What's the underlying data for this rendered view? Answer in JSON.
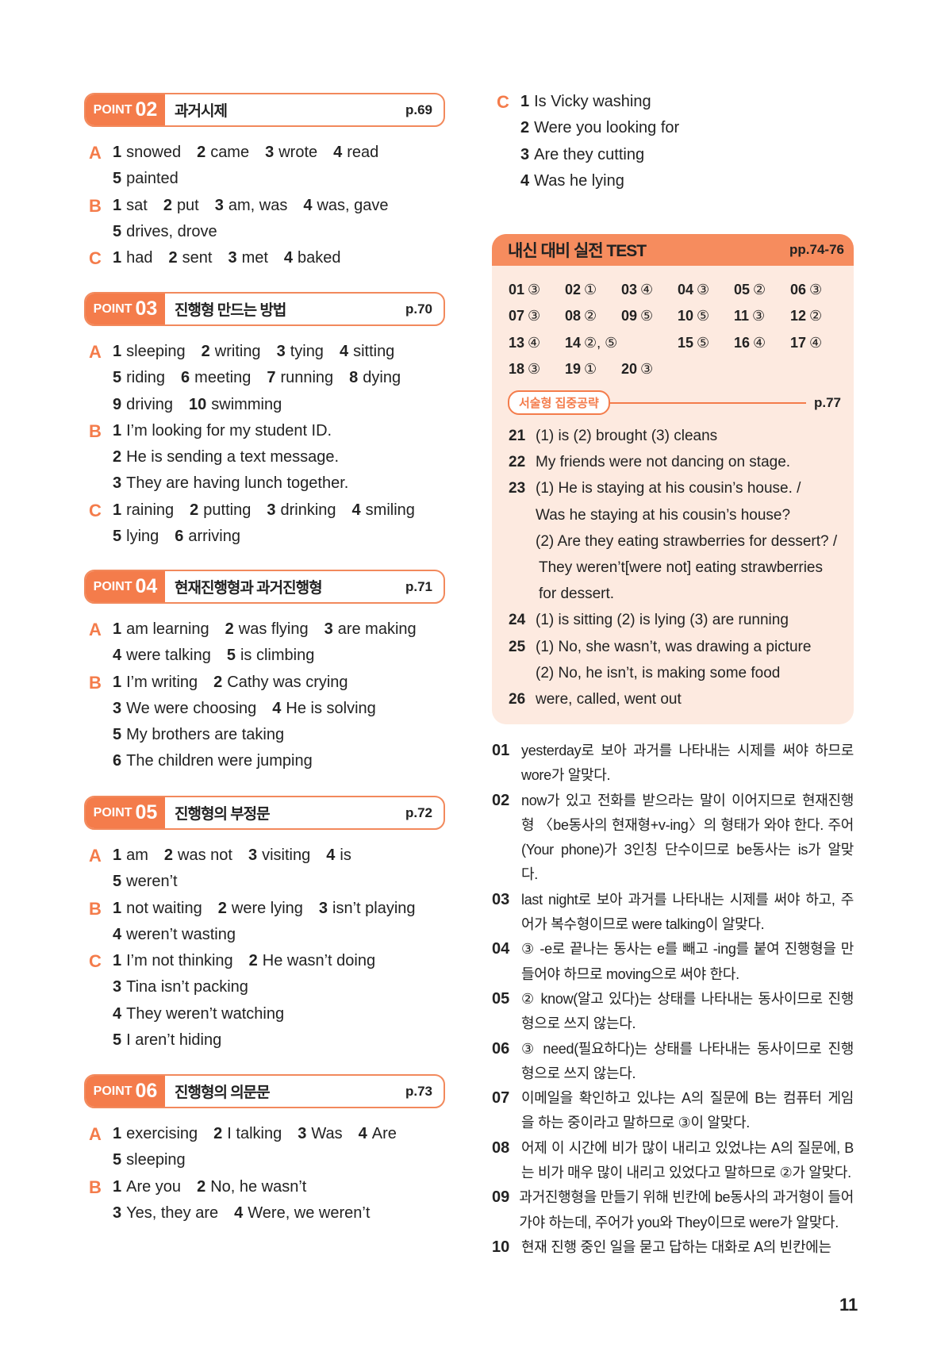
{
  "colors": {
    "accent": "#f47c4b",
    "test_bg": "#fdeae0",
    "test_header": "#f68c5e"
  },
  "left_sections": [
    {
      "point_label": "POINT",
      "point_num": "02",
      "title": "과거시제",
      "page": "p.69",
      "groups": [
        {
          "letter": "A",
          "lines": [
            [
              [
                "1",
                "snowed"
              ],
              [
                "2",
                "came"
              ],
              [
                "3",
                "wrote"
              ],
              [
                "4",
                "read"
              ]
            ],
            [
              [
                "5",
                "painted"
              ]
            ]
          ]
        },
        {
          "letter": "B",
          "lines": [
            [
              [
                "1",
                "sat"
              ],
              [
                "2",
                "put"
              ],
              [
                "3",
                "am, was"
              ],
              [
                "4",
                "was, gave"
              ]
            ],
            [
              [
                "5",
                "drives, drove"
              ]
            ]
          ]
        },
        {
          "letter": "C",
          "lines": [
            [
              [
                "1",
                "had"
              ],
              [
                "2",
                "sent"
              ],
              [
                "3",
                "met"
              ],
              [
                "4",
                "baked"
              ]
            ]
          ]
        }
      ]
    },
    {
      "point_label": "POINT",
      "point_num": "03",
      "title": "진행형 만드는 방법",
      "page": "p.70",
      "groups": [
        {
          "letter": "A",
          "lines": [
            [
              [
                "1",
                "sleeping"
              ],
              [
                "2",
                "writing"
              ],
              [
                "3",
                "tying"
              ],
              [
                "4",
                "sitting"
              ]
            ],
            [
              [
                "5",
                "riding"
              ],
              [
                "6",
                "meeting"
              ],
              [
                "7",
                "running"
              ],
              [
                "8",
                "dying"
              ]
            ],
            [
              [
                "9",
                "driving"
              ],
              [
                "10",
                "swimming"
              ]
            ]
          ]
        },
        {
          "letter": "B",
          "lines": [
            [
              [
                "1",
                "I’m looking for my student ID."
              ]
            ],
            [
              [
                "2",
                "He is sending a text message."
              ]
            ],
            [
              [
                "3",
                "They are having lunch together."
              ]
            ]
          ]
        },
        {
          "letter": "C",
          "lines": [
            [
              [
                "1",
                "raining"
              ],
              [
                "2",
                "putting"
              ],
              [
                "3",
                "drinking"
              ],
              [
                "4",
                "smiling"
              ]
            ],
            [
              [
                "5",
                "lying"
              ],
              [
                "6",
                "arriving"
              ]
            ]
          ]
        }
      ]
    },
    {
      "point_label": "POINT",
      "point_num": "04",
      "title": "현재진행형과 과거진행형",
      "page": "p.71",
      "groups": [
        {
          "letter": "A",
          "lines": [
            [
              [
                "1",
                "am learning"
              ],
              [
                "2",
                "was flying"
              ],
              [
                "3",
                "are making"
              ]
            ],
            [
              [
                "4",
                "were talking"
              ],
              [
                "5",
                "is climbing"
              ]
            ]
          ]
        },
        {
          "letter": "B",
          "lines": [
            [
              [
                "1",
                "I’m writing"
              ],
              [
                "2",
                "Cathy was crying"
              ]
            ],
            [
              [
                "3",
                "We were choosing"
              ],
              [
                "4",
                "He is solving"
              ]
            ],
            [
              [
                "5",
                "My brothers are taking"
              ]
            ],
            [
              [
                "6",
                "The children were jumping"
              ]
            ]
          ]
        }
      ]
    },
    {
      "point_label": "POINT",
      "point_num": "05",
      "title": "진행형의 부정문",
      "page": "p.72",
      "groups": [
        {
          "letter": "A",
          "lines": [
            [
              [
                "1",
                "am"
              ],
              [
                "2",
                "was not"
              ],
              [
                "3",
                "visiting"
              ],
              [
                "4",
                "is"
              ]
            ],
            [
              [
                "5",
                "weren’t"
              ]
            ]
          ]
        },
        {
          "letter": "B",
          "lines": [
            [
              [
                "1",
                "not waiting"
              ],
              [
                "2",
                "were lying"
              ],
              [
                "3",
                "isn’t playing"
              ]
            ],
            [
              [
                "4",
                "weren’t wasting"
              ]
            ]
          ]
        },
        {
          "letter": "C",
          "lines": [
            [
              [
                "1",
                "I’m not thinking"
              ],
              [
                "2",
                "He wasn’t doing"
              ]
            ],
            [
              [
                "3",
                "Tina isn’t packing"
              ]
            ],
            [
              [
                "4",
                "They weren’t watching"
              ]
            ],
            [
              [
                "5",
                "I aren’t hiding"
              ]
            ]
          ]
        }
      ]
    },
    {
      "point_label": "POINT",
      "point_num": "06",
      "title": "진행형의 의문문",
      "page": "p.73",
      "groups": [
        {
          "letter": "A",
          "lines": [
            [
              [
                "1",
                "exercising"
              ],
              [
                "2",
                "I talking"
              ],
              [
                "3",
                "Was"
              ],
              [
                "4",
                "Are"
              ]
            ],
            [
              [
                "5",
                "sleeping"
              ]
            ]
          ]
        },
        {
          "letter": "B",
          "lines": [
            [
              [
                "1",
                "Are you"
              ],
              [
                "2",
                "No, he wasn’t"
              ]
            ],
            [
              [
                "3",
                "Yes, they are"
              ],
              [
                "4",
                "Were, we weren’t"
              ]
            ]
          ]
        }
      ]
    }
  ],
  "right_c": {
    "letter": "C",
    "lines": [
      [
        [
          "1",
          "Is Vicky washing"
        ]
      ],
      [
        [
          "2",
          "Were you looking for"
        ]
      ],
      [
        [
          "3",
          "Are they cutting"
        ]
      ],
      [
        [
          "4",
          "Was he lying"
        ]
      ]
    ]
  },
  "test": {
    "title": "내신 대비 실전 TEST",
    "page": "pp.74-76",
    "answers": [
      [
        "01",
        "③"
      ],
      [
        "02",
        "①"
      ],
      [
        "03",
        "④"
      ],
      [
        "04",
        "③"
      ],
      [
        "05",
        "②"
      ],
      [
        "06",
        "③"
      ],
      [
        "07",
        "③"
      ],
      [
        "08",
        "②"
      ],
      [
        "09",
        "⑤"
      ],
      [
        "10",
        "⑤"
      ],
      [
        "11",
        "③"
      ],
      [
        "12",
        "②"
      ],
      [
        "13",
        "④"
      ],
      [
        "14",
        "②, ⑤"
      ],
      [
        "15",
        "⑤"
      ],
      [
        "16",
        "④"
      ],
      [
        "17",
        "④"
      ],
      [
        "18",
        "③"
      ],
      [
        "19",
        "①"
      ],
      [
        "20",
        "③"
      ]
    ],
    "essay_title": "서술형 집중공략",
    "essay_page": "p.77",
    "essay": [
      [
        "21",
        "(1) is (2) brought (3) cleans"
      ],
      [
        "22",
        "My friends were not dancing on stage."
      ],
      [
        "23",
        "(1) He is staying at his cousin’s house. /"
      ],
      [
        "",
        "Was he staying at his cousin’s house?"
      ],
      [
        "",
        "(2) Are they eating strawberries for dessert? /"
      ],
      [
        "",
        "They weren’t[were not] eating strawberries"
      ],
      [
        "",
        "for dessert."
      ],
      [
        "24",
        "(1) is sitting (2) is lying (3) are running"
      ],
      [
        "25",
        "(1) No, she wasn’t, was drawing a picture"
      ],
      [
        "",
        "(2) No, he isn’t, is making some food"
      ],
      [
        "26",
        "were, called, went out"
      ]
    ]
  },
  "explanations": [
    {
      "n": "01",
      "lines": [
        "yesterday로 보아 과거를 나타내는 시제를 써야 하므로",
        "wore가 알맞다."
      ]
    },
    {
      "n": "02",
      "lines": [
        "now가 있고 전화를 받으라는 말이 이어지므로 현재진행",
        "형 〈be동사의 현재형+v-ing〉의 형태가 와야 한다. 주어",
        "(Your phone)가 3인칭 단수이므로 be동사는 is가 알맞",
        "다."
      ]
    },
    {
      "n": "03",
      "lines": [
        "last night로 보아 과거를 나타내는 시제를 써야 하고, 주",
        "어가 복수형이므로 were talking이 알맞다."
      ]
    },
    {
      "n": "04",
      "lines": [
        "③ -e로 끝나는 동사는 e를 빼고 -ing를 붙여 진행형을 만",
        "들어야 하므로 moving으로 써야 한다."
      ]
    },
    {
      "n": "05",
      "lines": [
        "② know(알고 있다)는 상태를 나타내는 동사이므로 진행",
        "형으로 쓰지 않는다."
      ]
    },
    {
      "n": "06",
      "lines": [
        "③ need(필요하다)는 상태를 나타내는 동사이므로 진행",
        "형으로 쓰지 않는다."
      ]
    },
    {
      "n": "07",
      "lines": [
        "이메일을 확인하고 있냐는 A의 질문에 B는 컴퓨터 게임",
        "을 하는 중이라고 말하므로 ③이 알맞다."
      ]
    },
    {
      "n": "08",
      "lines": [
        "어제 이 시간에 비가 많이 내리고 있었냐는 A의 질문에, B",
        "는 비가 매우 많이 내리고 있었다고 말하므로 ②가 알맞다."
      ]
    },
    {
      "n": "09",
      "lines": [
        "과거진행형을 만들기 위해 빈칸에 be동사의 과거형이 들어",
        "가야 하는데, 주어가 you와 They이므로 were가 알맞다."
      ]
    },
    {
      "n": "10",
      "lines": [
        "현재 진행 중인 일을 묻고 답하는 대화로 A의 빈칸에는"
      ]
    }
  ],
  "page_number": "11"
}
